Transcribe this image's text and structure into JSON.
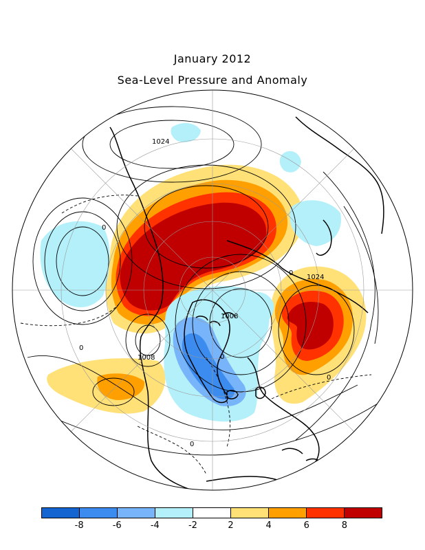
{
  "title": "January 2012",
  "subtitle": "Sea-Level Pressure and Anomaly",
  "contour_labels": {
    "north_high": "1024",
    "east_high": "1024",
    "arctic_low": "1008",
    "atlantic_low": "1008",
    "zero_west": "0",
    "zero_southwest": "0",
    "zero_center": "0",
    "zero_south": "0",
    "zero_southeast": "0",
    "zero_northwest": "0"
  },
  "colorbar": {
    "colors": [
      "#1464d2",
      "#3c8cf0",
      "#78b4fa",
      "#b4f0fa",
      "#ffffff",
      "#ffe178",
      "#ffa000",
      "#ff3200",
      "#c00000"
    ],
    "ticks": [
      "-8",
      "-6",
      "-4",
      "-2",
      "2",
      "4",
      "6",
      "8"
    ]
  },
  "map_colors": {
    "strong_positive": "#c00000",
    "positive": "#ff3200",
    "moderate_positive": "#ffa000",
    "weak_positive": "#ffe178",
    "weak_negative": "#b4f0fa",
    "moderate_negative": "#78b4fa",
    "negative": "#3c8cf0"
  }
}
